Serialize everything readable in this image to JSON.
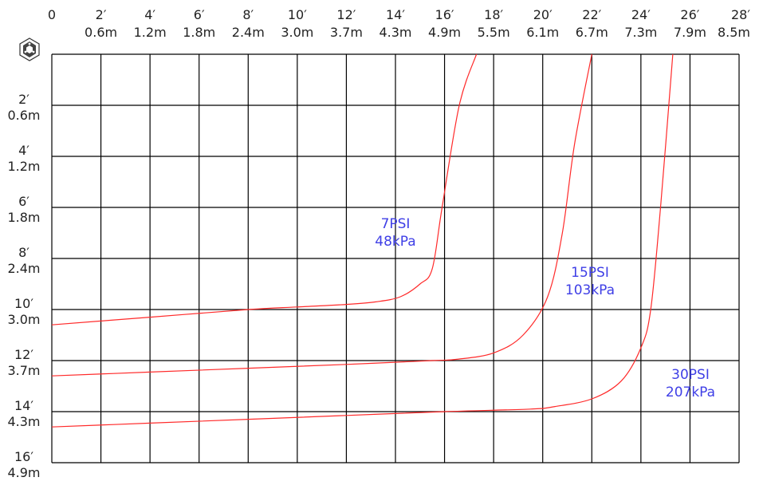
{
  "chart_data": {
    "type": "line",
    "title": "",
    "xlabel": "",
    "ylabel": "",
    "x_unit": "ft",
    "y_unit": "ft",
    "xlim": [
      0,
      28
    ],
    "ylim": [
      0,
      16
    ],
    "y_inverted": true,
    "grid": true,
    "x_ticks": [
      {
        "ft": "0",
        "m": ""
      },
      {
        "ft": "2′",
        "m": "0.6m"
      },
      {
        "ft": "4′",
        "m": "1.2m"
      },
      {
        "ft": "6′",
        "m": "1.8m"
      },
      {
        "ft": "8′",
        "m": "2.4m"
      },
      {
        "ft": "10′",
        "m": "3.0m"
      },
      {
        "ft": "12′",
        "m": "3.7m"
      },
      {
        "ft": "14′",
        "m": "4.3m"
      },
      {
        "ft": "16′",
        "m": "4.9m"
      },
      {
        "ft": "18′",
        "m": "5.5m"
      },
      {
        "ft": "20′",
        "m": "6.1m"
      },
      {
        "ft": "22′",
        "m": "6.7m"
      },
      {
        "ft": "24′",
        "m": "7.3m"
      },
      {
        "ft": "26′",
        "m": "7.9m"
      },
      {
        "ft": "28′",
        "m": "8.5m"
      }
    ],
    "y_ticks": [
      {
        "ft": "2′",
        "m": "0.6m"
      },
      {
        "ft": "4′",
        "m": "1.2m"
      },
      {
        "ft": "6′",
        "m": "1.8m"
      },
      {
        "ft": "8′",
        "m": "2.4m"
      },
      {
        "ft": "10′",
        "m": "3.0m"
      },
      {
        "ft": "12′",
        "m": "3.7m"
      },
      {
        "ft": "14′",
        "m": "4.3m"
      },
      {
        "ft": "16′",
        "m": "4.9m"
      }
    ],
    "series": [
      {
        "label_line1": "7PSI",
        "label_line2": "48kPa",
        "color": "#ff2a2a",
        "label_color": "#3f3fe6",
        "x": [
          0,
          4,
          8,
          10,
          12,
          13.2,
          14.2,
          15,
          15.5,
          15.9,
          16.6,
          17.3
        ],
        "y": [
          10.6,
          10.3,
          10.0,
          9.9,
          9.8,
          9.7,
          9.5,
          9.0,
          8.4,
          6.0,
          2.0,
          0
        ]
      },
      {
        "label_line1": "15PSI",
        "label_line2": "103kPa",
        "color": "#ff2a2a",
        "label_color": "#3f3fe6",
        "x": [
          0,
          4,
          8,
          12,
          15.5,
          16.5,
          18,
          19.2,
          20.2,
          20.8,
          21.3,
          22
        ],
        "y": [
          12.6,
          12.45,
          12.3,
          12.15,
          12.0,
          11.95,
          11.7,
          11.0,
          9.5,
          7.0,
          3.5,
          0
        ]
      },
      {
        "label_line1": "30PSI",
        "label_line2": "207kPa",
        "color": "#ff2a2a",
        "label_color": "#3f3fe6",
        "x": [
          0,
          4,
          8,
          12,
          16,
          19.5,
          20.5,
          22,
          23.2,
          24,
          24.4,
          24.8,
          25.3
        ],
        "y": [
          14.6,
          14.45,
          14.3,
          14.15,
          14.0,
          13.9,
          13.8,
          13.5,
          12.8,
          11.5,
          10.0,
          6.0,
          0
        ]
      }
    ]
  }
}
